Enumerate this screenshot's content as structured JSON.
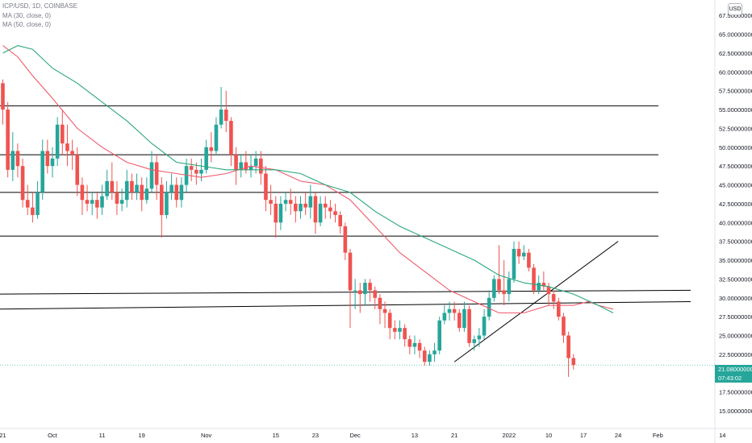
{
  "header": {
    "symbol_line": "ICP/USD, 1D, COINBASE",
    "ma1_label": "MA (30, close, 0)",
    "ma2_label": "MA (50, close, 0)"
  },
  "currency_button": "USD",
  "last_price": {
    "price": "21.08000000",
    "countdown": "07:43:02",
    "color": "#26a69a"
  },
  "colors": {
    "up": "#26a69a",
    "down": "#ef5350",
    "ma30": "#f05a6b",
    "ma50": "#2aa77a",
    "lines": "#000000"
  },
  "chart_data": {
    "type": "candlestick",
    "x_axis_ticks": [
      {
        "label": "21",
        "idx": 0
      },
      {
        "label": "Oct",
        "idx": 10
      },
      {
        "label": "11",
        "idx": 20
      },
      {
        "label": "19",
        "idx": 28
      },
      {
        "label": "Nov",
        "idx": 41
      },
      {
        "label": "15",
        "idx": 55
      },
      {
        "label": "23",
        "idx": 63
      },
      {
        "label": "Dec",
        "idx": 71
      },
      {
        "label": "13",
        "idx": 83
      },
      {
        "label": "21",
        "idx": 91
      },
      {
        "label": "2022",
        "idx": 102
      },
      {
        "label": "10",
        "idx": 110
      },
      {
        "label": "17",
        "idx": 117
      },
      {
        "label": "24",
        "idx": 124
      },
      {
        "label": "Feb",
        "idx": 132
      },
      {
        "label": "14",
        "idx": 145
      }
    ],
    "y_axis": {
      "ylim": [
        14.2,
        68.0
      ],
      "ticks": [
        "15.00000000",
        "17.50000000",
        "20.00000000",
        "22.50000000",
        "25.00000000",
        "27.50000000",
        "30.00000000",
        "32.50000000",
        "35.00000000",
        "37.50000000",
        "40.00000000",
        "42.50000000",
        "45.00000000",
        "47.50000000",
        "50.00000000",
        "52.50000000",
        "55.00000000",
        "57.50000000",
        "60.00000000",
        "62.50000000",
        "65.00000000",
        "67.50000000"
      ]
    },
    "candles": [
      [
        58.5,
        55.0,
        59.0,
        53.0
      ],
      [
        55.0,
        47.0,
        56.0,
        46.0
      ],
      [
        47.0,
        49.5,
        52.0,
        45.5
      ],
      [
        49.5,
        47.5,
        50.5,
        46.0
      ],
      [
        47.5,
        43.0,
        48.5,
        42.0
      ],
      [
        43.0,
        42.0,
        45.0,
        41.0
      ],
      [
        42.0,
        41.0,
        44.0,
        40.0
      ],
      [
        41.0,
        44.0,
        45.5,
        40.5
      ],
      [
        44.0,
        49.5,
        51.0,
        43.0
      ],
      [
        49.5,
        47.5,
        51.0,
        46.5
      ],
      [
        47.5,
        48.5,
        50.0,
        46.0
      ],
      [
        48.5,
        53.0,
        54.0,
        47.5
      ],
      [
        53.0,
        50.5,
        55.0,
        49.0
      ],
      [
        50.5,
        49.5,
        53.0,
        47.5
      ],
      [
        49.5,
        49.0,
        51.0,
        47.0
      ],
      [
        49.0,
        45.0,
        50.0,
        43.5
      ],
      [
        45.0,
        43.0,
        46.0,
        41.0
      ],
      [
        43.0,
        42.5,
        45.0,
        41.5
      ],
      [
        42.5,
        43.0,
        44.0,
        41.0
      ],
      [
        43.0,
        42.0,
        44.0,
        40.5
      ],
      [
        42.0,
        43.5,
        45.0,
        41.0
      ],
      [
        43.5,
        45.5,
        47.0,
        43.0
      ],
      [
        45.5,
        44.0,
        48.0,
        43.0
      ],
      [
        44.0,
        42.5,
        45.5,
        41.0
      ],
      [
        42.5,
        43.0,
        44.5,
        41.5
      ],
      [
        43.0,
        45.5,
        47.0,
        42.0
      ],
      [
        45.5,
        44.0,
        46.5,
        43.0
      ],
      [
        44.0,
        45.0,
        46.5,
        43.0
      ],
      [
        45.0,
        43.0,
        46.0,
        41.5
      ],
      [
        43.0,
        44.5,
        46.0,
        42.5
      ],
      [
        44.5,
        48.0,
        49.5,
        44.0
      ],
      [
        48.0,
        45.0,
        49.0,
        43.0
      ],
      [
        45.0,
        41.0,
        46.0,
        38.0
      ],
      [
        41.0,
        44.0,
        45.5,
        40.5
      ],
      [
        44.0,
        45.0,
        46.5,
        43.0
      ],
      [
        45.0,
        43.0,
        46.0,
        42.0
      ],
      [
        43.0,
        45.0,
        46.0,
        42.0
      ],
      [
        45.0,
        47.5,
        48.5,
        44.0
      ],
      [
        47.5,
        47.0,
        48.5,
        45.5
      ],
      [
        47.0,
        46.5,
        48.0,
        45.0
      ],
      [
        46.5,
        47.0,
        48.5,
        45.5
      ],
      [
        47.0,
        50.0,
        51.0,
        46.5
      ],
      [
        50.0,
        49.5,
        52.0,
        48.0
      ],
      [
        49.5,
        53.0,
        54.0,
        49.0
      ],
      [
        53.0,
        55.0,
        58.0,
        52.5
      ],
      [
        55.0,
        53.5,
        57.5,
        52.0
      ],
      [
        53.5,
        49.0,
        54.0,
        47.5
      ],
      [
        49.0,
        47.0,
        50.0,
        45.0
      ],
      [
        47.0,
        48.0,
        49.0,
        46.0
      ],
      [
        48.0,
        47.0,
        49.5,
        46.5
      ],
      [
        47.0,
        47.5,
        49.0,
        46.0
      ],
      [
        47.5,
        48.5,
        49.5,
        46.5
      ],
      [
        48.5,
        46.5,
        49.5,
        45.0
      ],
      [
        46.5,
        43.0,
        47.5,
        41.5
      ],
      [
        43.0,
        42.5,
        45.0,
        41.0
      ],
      [
        42.5,
        40.0,
        43.5,
        38.0
      ],
      [
        40.0,
        42.5,
        43.5,
        39.0
      ],
      [
        42.5,
        43.0,
        44.0,
        41.5
      ],
      [
        43.0,
        42.5,
        44.5,
        41.0
      ],
      [
        42.5,
        41.5,
        43.5,
        40.0
      ],
      [
        41.5,
        42.5,
        43.5,
        40.5
      ],
      [
        42.5,
        42.0,
        44.0,
        41.0
      ],
      [
        42.0,
        43.5,
        45.0,
        40.5
      ],
      [
        43.5,
        40.0,
        44.0,
        38.5
      ],
      [
        40.0,
        42.5,
        43.5,
        39.5
      ],
      [
        42.5,
        42.0,
        43.5,
        40.5
      ],
      [
        42.0,
        41.5,
        43.0,
        40.5
      ],
      [
        41.5,
        41.0,
        42.5,
        40.0
      ],
      [
        41.0,
        39.5,
        41.5,
        38.5
      ],
      [
        39.5,
        36.0,
        40.0,
        35.0
      ],
      [
        36.0,
        31.0,
        36.5,
        26.0
      ],
      [
        31.0,
        31.0,
        32.5,
        28.5
      ],
      [
        31.0,
        30.5,
        32.0,
        28.0
      ],
      [
        30.5,
        32.0,
        32.5,
        29.0
      ],
      [
        32.0,
        31.0,
        32.5,
        29.5
      ],
      [
        31.0,
        30.0,
        31.5,
        28.5
      ],
      [
        30.0,
        28.5,
        30.5,
        26.5
      ],
      [
        28.5,
        28.0,
        29.5,
        26.0
      ],
      [
        28.0,
        26.0,
        28.5,
        24.5
      ],
      [
        26.0,
        25.5,
        27.0,
        24.5
      ],
      [
        25.5,
        26.0,
        27.0,
        24.5
      ],
      [
        26.0,
        24.5,
        26.5,
        23.5
      ],
      [
        24.5,
        23.5,
        25.0,
        22.5
      ],
      [
        23.5,
        24.0,
        25.0,
        22.5
      ],
      [
        24.0,
        23.0,
        24.5,
        22.0
      ],
      [
        23.0,
        21.5,
        23.5,
        21.0
      ],
      [
        21.5,
        22.5,
        23.0,
        21.0
      ],
      [
        22.5,
        23.0,
        24.0,
        21.5
      ],
      [
        23.0,
        27.0,
        27.5,
        22.5
      ],
      [
        27.0,
        28.0,
        29.0,
        26.5
      ],
      [
        28.0,
        28.5,
        29.5,
        27.0
      ],
      [
        28.5,
        28.0,
        29.5,
        27.0
      ],
      [
        28.0,
        26.0,
        28.5,
        25.5
      ],
      [
        26.0,
        28.5,
        29.5,
        25.5
      ],
      [
        28.5,
        24.0,
        29.0,
        23.5
      ],
      [
        24.0,
        24.5,
        25.0,
        23.0
      ],
      [
        24.5,
        25.0,
        26.0,
        23.5
      ],
      [
        25.0,
        27.5,
        28.5,
        24.5
      ],
      [
        27.5,
        30.0,
        31.0,
        27.0
      ],
      [
        30.0,
        32.5,
        33.0,
        29.5
      ],
      [
        32.5,
        31.0,
        37.0,
        30.5
      ],
      [
        31.0,
        30.5,
        35.0,
        29.0
      ],
      [
        30.5,
        32.5,
        33.5,
        29.5
      ],
      [
        32.5,
        36.5,
        37.5,
        32.0
      ],
      [
        36.5,
        35.5,
        37.5,
        34.5
      ],
      [
        35.5,
        36.0,
        37.0,
        35.0
      ],
      [
        36.0,
        34.0,
        36.5,
        33.5
      ],
      [
        34.0,
        31.0,
        34.5,
        30.5
      ],
      [
        31.0,
        32.0,
        33.0,
        30.5
      ],
      [
        32.0,
        31.5,
        33.5,
        31.0
      ],
      [
        31.5,
        30.5,
        32.0,
        29.0
      ],
      [
        30.5,
        29.5,
        31.0,
        28.5
      ],
      [
        29.5,
        27.5,
        30.0,
        27.0
      ],
      [
        27.5,
        25.0,
        28.0,
        24.0
      ],
      [
        25.0,
        22.0,
        25.5,
        19.5
      ],
      [
        22.0,
        21.08,
        22.5,
        20.5
      ]
    ],
    "moving_averages": [
      {
        "name": "MA (30, close, 0)",
        "points": [
          [
            0,
            63.5
          ],
          [
            3,
            62.0
          ],
          [
            6,
            59.5
          ],
          [
            10,
            56.5
          ],
          [
            15,
            52.5
          ],
          [
            20,
            50.0
          ],
          [
            25,
            48.0
          ],
          [
            30,
            47.0
          ],
          [
            35,
            46.5
          ],
          [
            40,
            46.0
          ],
          [
            45,
            46.5
          ],
          [
            50,
            47.5
          ],
          [
            55,
            47.0
          ],
          [
            60,
            45.5
          ],
          [
            65,
            45.0
          ],
          [
            70,
            43.0
          ],
          [
            75,
            39.5
          ],
          [
            80,
            36.0
          ],
          [
            85,
            33.5
          ],
          [
            90,
            31.0
          ],
          [
            95,
            29.5
          ],
          [
            100,
            28.0
          ],
          [
            105,
            28.0
          ],
          [
            110,
            29.0
          ],
          [
            115,
            29.0
          ],
          [
            118,
            29.5
          ],
          [
            120,
            29.0
          ],
          [
            123,
            28.5
          ]
        ]
      },
      {
        "name": "MA (50, close, 0)",
        "points": [
          [
            0,
            62.5
          ],
          [
            3,
            63.5
          ],
          [
            6,
            63.0
          ],
          [
            10,
            60.5
          ],
          [
            15,
            58.5
          ],
          [
            20,
            56.0
          ],
          [
            25,
            53.5
          ],
          [
            30,
            50.5
          ],
          [
            35,
            48.0
          ],
          [
            40,
            47.5
          ],
          [
            45,
            47.0
          ],
          [
            50,
            47.0
          ],
          [
            55,
            47.0
          ],
          [
            60,
            46.5
          ],
          [
            65,
            45.0
          ],
          [
            70,
            44.0
          ],
          [
            75,
            41.5
          ],
          [
            80,
            39.5
          ],
          [
            85,
            38.0
          ],
          [
            90,
            36.5
          ],
          [
            95,
            35.0
          ],
          [
            100,
            33.0
          ],
          [
            105,
            32.0
          ],
          [
            110,
            31.5
          ],
          [
            115,
            30.5
          ],
          [
            120,
            29.0
          ],
          [
            123,
            28.0
          ]
        ]
      }
    ],
    "horizontal_lines": [
      55.5,
      49.0,
      44.0,
      38.2
    ],
    "sloped_lines": [
      {
        "start": [
          -1,
          30.5
        ],
        "end": [
          140,
          31.0
        ]
      },
      {
        "start": [
          -1,
          28.5
        ],
        "end": [
          140,
          29.5
        ]
      },
      {
        "start": [
          91,
          21.5
        ],
        "end": [
          124,
          37.5
        ]
      }
    ]
  }
}
